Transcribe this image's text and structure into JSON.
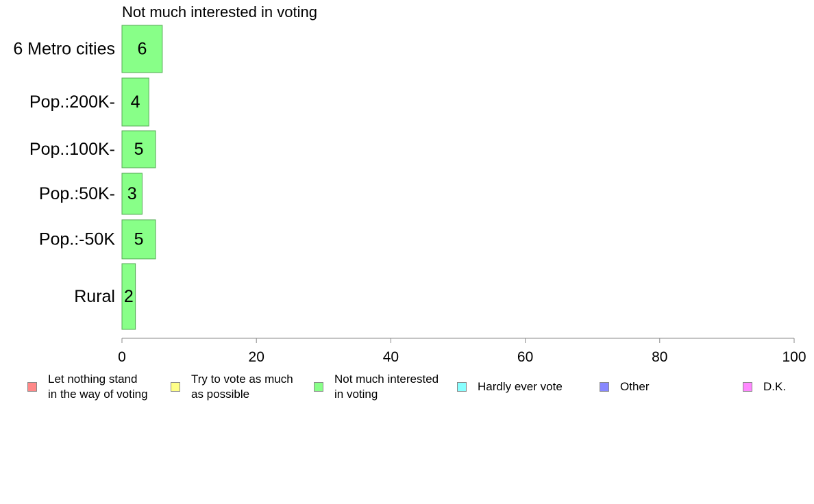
{
  "chart_data": {
    "type": "bar",
    "orientation": "horizontal",
    "title": "Not much interested in voting",
    "categories": [
      "6 Metro cities",
      "Pop.:200K-",
      "Pop.:100K-",
      "Pop.:50K-",
      "Pop.:-50K",
      "Rural"
    ],
    "values": [
      6,
      4,
      5,
      3,
      5,
      2
    ],
    "value_labels": [
      "6",
      "4",
      "5",
      "3",
      "5",
      "2"
    ],
    "xlim": [
      0,
      100
    ],
    "xticks": [
      "0",
      "20",
      "40",
      "60",
      "80",
      "100"
    ],
    "grid": false,
    "bar_color": "#88ff88",
    "bar_edge_color": "#55aa55",
    "legend_placement": "bottom",
    "legend": [
      {
        "label": "Let nothing stand\nin the way of voting",
        "color": "#ff8888"
      },
      {
        "label": "Try to vote as much\nas possible",
        "color": "#ffff88"
      },
      {
        "label": "Not much interested\nin voting",
        "color": "#88ff88"
      },
      {
        "label": "Hardly ever vote",
        "color": "#88ffff"
      },
      {
        "label": "Other",
        "color": "#8888ff"
      },
      {
        "label": "D.K.",
        "color": "#ff88ff"
      }
    ]
  }
}
